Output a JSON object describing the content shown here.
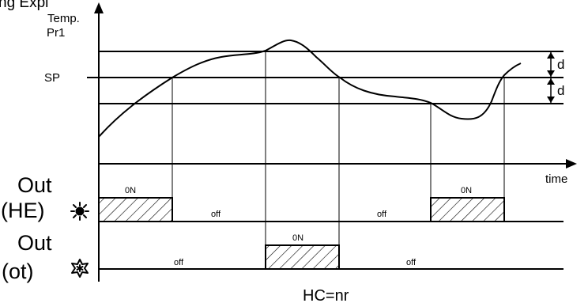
{
  "diagram": {
    "header_fragment": "ng Expl",
    "y_axis_label_line1": "Temp.",
    "y_axis_label_line2": "Pr1",
    "setpoint_label": "SP",
    "x_axis_label": "time",
    "differential_upper_label": "d",
    "differential_lower_label": "d",
    "heating_output": {
      "label_line1": "Out",
      "label_line2": "(HE)",
      "icon": "sun-icon",
      "states": [
        {
          "label": "0N"
        },
        {
          "label": "off"
        },
        {
          "label": "off"
        },
        {
          "label": "0N"
        }
      ]
    },
    "cooling_output": {
      "label_line1": "Out",
      "label_line2": "(ot)",
      "icon": "snowflake-icon",
      "states": [
        {
          "label": "off"
        },
        {
          "label": "0N"
        },
        {
          "label": "off"
        }
      ]
    },
    "footer_label": "HC=nr"
  }
}
